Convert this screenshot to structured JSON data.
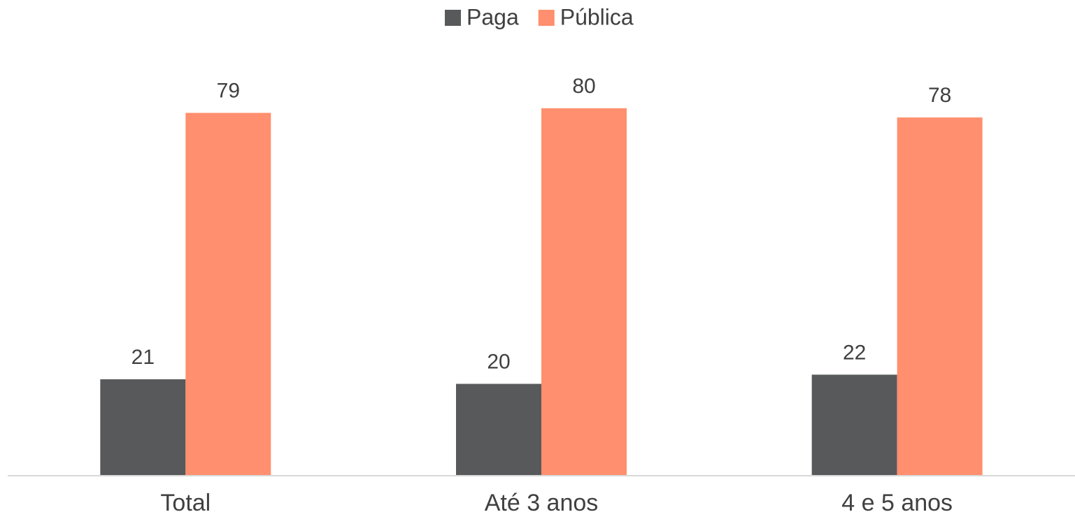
{
  "chart_data": {
    "type": "bar",
    "categories": [
      "Total",
      "Até 3 anos",
      "4 e 5 anos"
    ],
    "series": [
      {
        "name": "Paga",
        "color": "#58595b",
        "values": [
          21,
          20,
          22
        ]
      },
      {
        "name": "Pública",
        "color": "#ff8f6e",
        "values": [
          79,
          80,
          78
        ]
      }
    ],
    "ylim": [
      0,
      100
    ],
    "legend": "top"
  }
}
